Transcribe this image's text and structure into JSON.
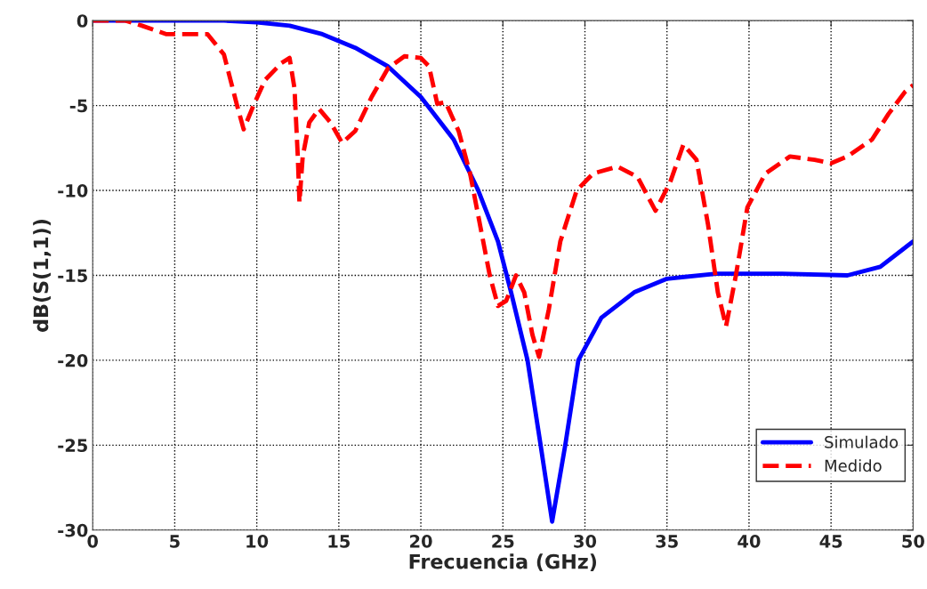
{
  "chart_data": {
    "type": "line",
    "xlabel": "Frecuencia (GHz)",
    "ylabel": "dB(S(1,1))",
    "xlim": [
      0,
      50
    ],
    "xticks": [
      0,
      5,
      10,
      15,
      20,
      25,
      30,
      35,
      40,
      45,
      50
    ],
    "ylim": [
      -30,
      0
    ],
    "yticks": [
      -30,
      -25,
      -20,
      -15,
      -10,
      -5,
      0
    ],
    "grid": true,
    "legend": "bottom right",
    "marker": "none",
    "series": [
      {
        "name": "Simulado",
        "color": "#0000ff",
        "line_style": "solid",
        "x": [
          0,
          8,
          10,
          12,
          14,
          16,
          18,
          20,
          22,
          23.5,
          24.7,
          25.5,
          26.5,
          27.3,
          28,
          28.8,
          29.6,
          31,
          33,
          35,
          38,
          42,
          46,
          48,
          50
        ],
        "values": [
          0,
          0,
          -0.1,
          -0.3,
          -0.8,
          -1.6,
          -2.7,
          -4.5,
          -7,
          -10,
          -13,
          -16,
          -20,
          -25,
          -29.5,
          -25,
          -20,
          -17.5,
          -16,
          -15.2,
          -14.9,
          -14.9,
          -15,
          -14.5,
          -13
        ]
      },
      {
        "name": "Medido",
        "color": "#ff0000",
        "line_style": "dashed",
        "x": [
          0,
          2,
          3,
          4.5,
          7,
          8,
          8.8,
          9.2,
          9.8,
          10.5,
          11.5,
          12,
          12.3,
          12.5,
          12.6,
          12.8,
          13.2,
          13.8,
          14.5,
          15.2,
          16,
          17,
          18,
          19,
          20,
          20.5,
          21,
          21.5,
          22.3,
          23,
          23.7,
          24.2,
          24.7,
          25.2,
          25.8,
          26.3,
          26.8,
          27.2,
          27.8,
          28.5,
          29.5,
          30.5,
          32,
          33.2,
          34.3,
          35.2,
          36,
          36.8,
          37.5,
          38.1,
          38.6,
          39.2,
          39.9,
          41,
          42.5,
          44,
          45,
          46,
          47.5,
          48.5,
          49.5,
          50
        ],
        "values": [
          0,
          0,
          -0.3,
          -0.8,
          -0.8,
          -2,
          -5,
          -6.4,
          -5,
          -3.5,
          -2.5,
          -2.2,
          -4,
          -8,
          -10.7,
          -8,
          -6,
          -5.2,
          -6,
          -7.2,
          -6.5,
          -4.5,
          -2.8,
          -2.1,
          -2.2,
          -2.7,
          -4.9,
          -4.8,
          -6.5,
          -9,
          -12.5,
          -15,
          -16.8,
          -16.5,
          -15,
          -16,
          -18.5,
          -19.8,
          -17,
          -13,
          -10,
          -9,
          -8.6,
          -9.2,
          -11.2,
          -9.5,
          -7.3,
          -8.2,
          -12,
          -16,
          -18,
          -15,
          -11,
          -9,
          -8,
          -8.2,
          -8.4,
          -8,
          -7,
          -5.5,
          -4.2,
          -3.8
        ]
      }
    ]
  }
}
